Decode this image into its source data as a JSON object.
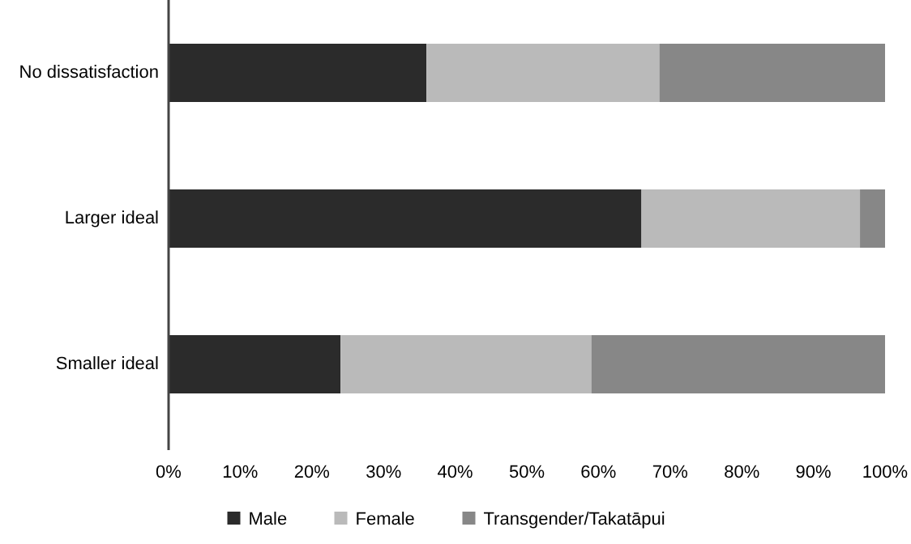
{
  "chart_data": {
    "type": "bar",
    "orientation": "horizontal",
    "stacked": true,
    "categories": [
      "No dissatisfaction",
      "Larger ideal",
      "Smaller ideal"
    ],
    "series": [
      {
        "name": "Male",
        "color": "#2b2b2b",
        "values": [
          36,
          66,
          24
        ]
      },
      {
        "name": "Female",
        "color": "#bababa",
        "values": [
          32.5,
          30.5,
          35
        ]
      },
      {
        "name": "Transgender/Takatāpui",
        "color": "#878787",
        "values": [
          31.5,
          3.5,
          41
        ]
      }
    ],
    "xlim": [
      0,
      100
    ],
    "xticks": [
      {
        "value": 0,
        "label": "0%"
      },
      {
        "value": 10,
        "label": "10%"
      },
      {
        "value": 20,
        "label": "20%"
      },
      {
        "value": 30,
        "label": "30%"
      },
      {
        "value": 40,
        "label": "40%"
      },
      {
        "value": 50,
        "label": "50%"
      },
      {
        "value": 60,
        "label": "60%"
      },
      {
        "value": 70,
        "label": "70%"
      },
      {
        "value": 80,
        "label": "80%"
      },
      {
        "value": 90,
        "label": "90%"
      },
      {
        "value": 100,
        "label": "100%"
      }
    ],
    "grid": false,
    "legend": "bottom"
  }
}
